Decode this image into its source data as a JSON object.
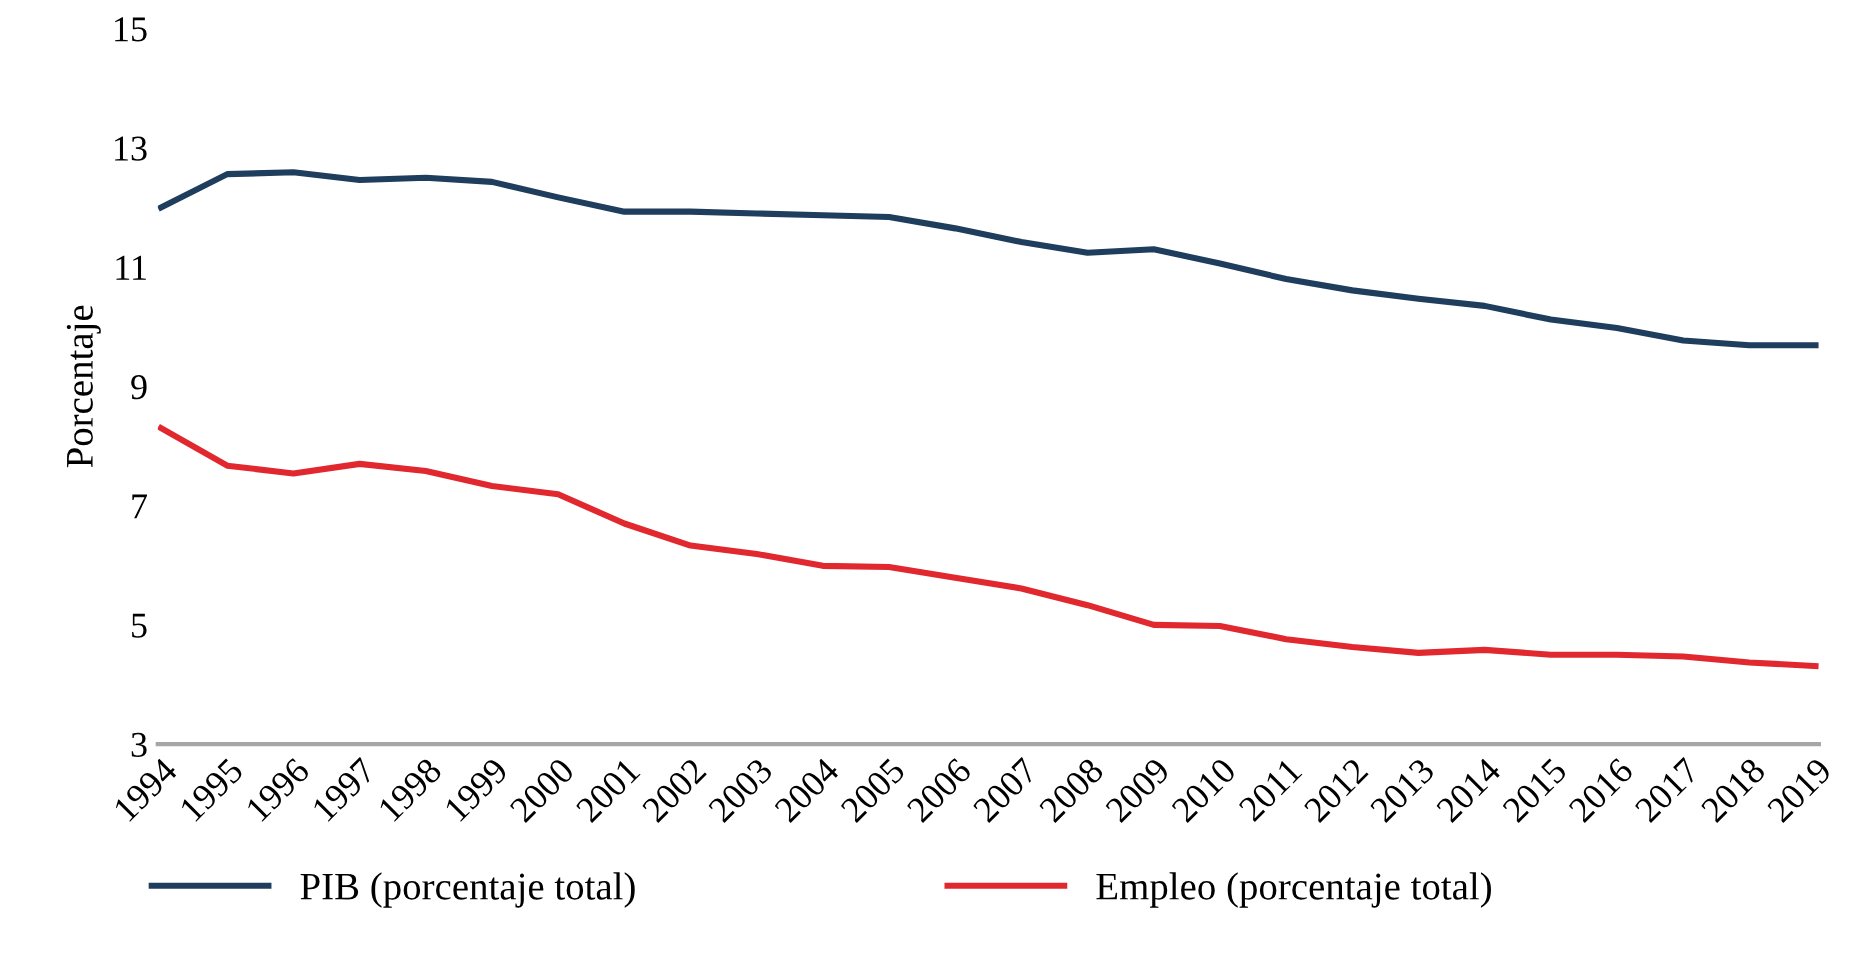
{
  "chart_data": {
    "type": "line",
    "ylabel": "Porcentaje",
    "categories": [
      "1994",
      "1995",
      "1996",
      "1997",
      "1998",
      "1999",
      "2000",
      "2001",
      "2002",
      "2003",
      "2004",
      "2005",
      "2006",
      "2007",
      "2008",
      "2009",
      "2010",
      "2011",
      "2012",
      "2013",
      "2014",
      "2015",
      "2016",
      "2017",
      "2018",
      "2019"
    ],
    "series": [
      {
        "name": "PIB (porcentaje total)",
        "color": "#1f3d5c",
        "values": [
          12.0,
          12.56,
          12.59,
          12.46,
          12.5,
          12.43,
          12.17,
          11.93,
          11.93,
          11.9,
          11.87,
          11.84,
          11.65,
          11.42,
          11.24,
          11.3,
          11.06,
          10.8,
          10.61,
          10.47,
          10.35,
          10.12,
          9.98,
          9.77,
          9.69,
          9.69
        ]
      },
      {
        "name": "Empleo (porcentaje total)",
        "color": "#e0282e",
        "values": [
          8.3,
          7.67,
          7.54,
          7.7,
          7.58,
          7.33,
          7.19,
          6.7,
          6.33,
          6.19,
          5.99,
          5.97,
          5.79,
          5.61,
          5.33,
          5.0,
          4.98,
          4.76,
          4.63,
          4.53,
          4.58,
          4.5,
          4.5,
          4.47,
          4.37,
          4.31
        ]
      }
    ],
    "ylim": [
      3,
      15
    ],
    "yticks": [
      3,
      5,
      7,
      9,
      11,
      13,
      15
    ],
    "grid": false,
    "legend": "bottom",
    "marker": "none",
    "line_style": "solid"
  }
}
